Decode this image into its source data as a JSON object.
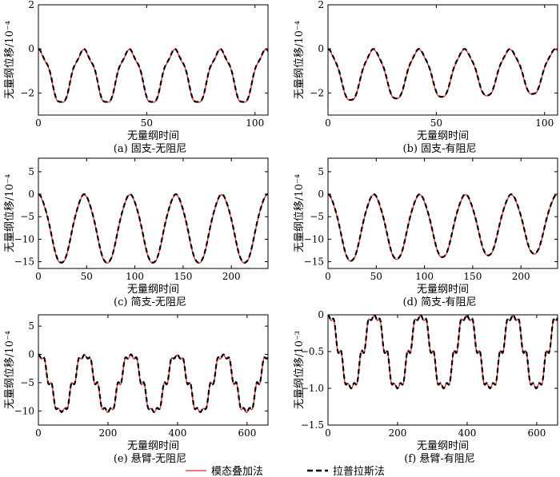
{
  "legend": {
    "modal": "模态叠加法",
    "laplace": "拉普拉斯法"
  },
  "colors": {
    "modal": "#e8262b",
    "laplace": "#000000"
  },
  "chart_data": [
    {
      "type": "line",
      "caption": "(a) 固支-无阻尼",
      "xlabel": "无量纲时间",
      "ylabel": "无量纲位移/10⁻⁴",
      "xlim": [
        0,
        106
      ],
      "ylim": [
        -3,
        2
      ],
      "xticks": [
        0,
        50,
        100
      ],
      "yticks": [
        2,
        0,
        -2
      ],
      "xtick_labels": [
        "0",
        "50",
        "100"
      ],
      "ytick_labels": [
        "2",
        "0",
        "−2"
      ],
      "period": 21.0,
      "amplitude": -2.4,
      "harmonic": 0.08,
      "damping": 0,
      "series": [
        {
          "name": "模态叠加法",
          "x": [
            0,
            5,
            10,
            11,
            16,
            21,
            26,
            31,
            32,
            37,
            42,
            47,
            52,
            53,
            58,
            63,
            68,
            73,
            74,
            79,
            84,
            89,
            94,
            95,
            100,
            106
          ],
          "y": [
            0,
            -1.2,
            -2.3,
            -2.4,
            -1.3,
            0,
            -1.2,
            -2.4,
            -2.5,
            -1.3,
            0,
            -1.2,
            -2.4,
            -2.5,
            -1.3,
            0,
            -1.2,
            -2.4,
            -2.4,
            -1.3,
            0,
            -1.2,
            -2.4,
            -2.4,
            -1.3,
            0
          ]
        },
        {
          "name": "拉普拉斯法",
          "x": [
            0,
            5,
            10,
            11,
            16,
            21,
            26,
            31,
            32,
            37,
            42,
            47,
            52,
            53,
            58,
            63,
            68,
            73,
            74,
            79,
            84,
            89,
            94,
            95,
            100,
            106
          ],
          "y": [
            0,
            -1.2,
            -2.3,
            -2.4,
            -1.3,
            0,
            -1.2,
            -2.4,
            -2.5,
            -1.3,
            0,
            -1.2,
            -2.4,
            -2.5,
            -1.3,
            0,
            -1.2,
            -2.4,
            -2.4,
            -1.3,
            0,
            -1.2,
            -2.4,
            -2.4,
            -1.3,
            0
          ]
        }
      ]
    },
    {
      "type": "line",
      "caption": "(b) 固支-有阻尼",
      "xlabel": "无量纲时间",
      "ylabel": "无量纲位移/10⁻⁴",
      "xlim": [
        0,
        106
      ],
      "ylim": [
        -3,
        2
      ],
      "xticks": [
        0,
        50,
        100
      ],
      "yticks": [
        2,
        0,
        -2
      ],
      "xtick_labels": [
        "0",
        "50",
        "100"
      ],
      "ytick_labels": [
        "2",
        "0",
        "−2"
      ],
      "period": 21.0,
      "amplitude": -2.35,
      "harmonic": 0.05,
      "damping": 0.0015,
      "series": [
        {
          "name": "模态叠加法",
          "x": [
            0,
            11,
            21,
            32,
            42,
            53,
            63,
            74,
            84,
            95,
            106
          ],
          "y": [
            0,
            -2.4,
            0,
            -2.4,
            0,
            -2.35,
            0,
            -2.3,
            0,
            -2.3,
            0
          ]
        },
        {
          "name": "拉普拉斯法",
          "x": [
            0,
            11,
            21,
            32,
            42,
            53,
            63,
            74,
            84,
            95,
            106
          ],
          "y": [
            0,
            -2.4,
            0,
            -2.4,
            0,
            -2.35,
            0,
            -2.3,
            0,
            -2.3,
            0
          ]
        }
      ]
    },
    {
      "type": "line",
      "caption": "(c) 简支-无阻尼",
      "xlabel": "无量纲时间",
      "ylabel": "无量纲位移/10⁻⁴",
      "xlim": [
        0,
        238
      ],
      "ylim": [
        -16.5,
        8
      ],
      "xticks": [
        0,
        50,
        100,
        150,
        200
      ],
      "yticks": [
        5,
        0,
        -5,
        -10,
        -15
      ],
      "xtick_labels": [
        "0",
        "50",
        "100",
        "150",
        "200"
      ],
      "ytick_labels": [
        "5",
        "0",
        "−5",
        "−10",
        "−15"
      ],
      "period": 47.5,
      "amplitude": -15.2,
      "harmonic": 0.02,
      "damping": 0,
      "series": [
        {
          "name": "模态叠加法",
          "x": [
            0,
            24,
            47.5,
            71,
            95,
            119,
            142.5,
            166,
            190,
            214,
            238
          ],
          "y": [
            0,
            -15.2,
            0,
            -15.2,
            0,
            -15.2,
            0,
            -15.2,
            0,
            -15.2,
            0
          ]
        },
        {
          "name": "拉普拉斯法",
          "x": [
            0,
            24,
            47.5,
            71,
            95,
            119,
            142.5,
            166,
            190,
            214,
            238
          ],
          "y": [
            0,
            -15.2,
            0,
            -15.2,
            0,
            -15.2,
            0,
            -15.2,
            0,
            -15.2,
            0
          ]
        }
      ]
    },
    {
      "type": "line",
      "caption": "(d) 简支-有阻尼",
      "xlabel": "无量纲时间",
      "ylabel": "无量纲位移/10⁻⁴",
      "xlim": [
        0,
        238
      ],
      "ylim": [
        -16.5,
        8
      ],
      "xticks": [
        0,
        50,
        100,
        150,
        200
      ],
      "yticks": [
        5,
        0,
        -5,
        -10,
        -15
      ],
      "xtick_labels": [
        "0",
        "50",
        "100",
        "150",
        "200"
      ],
      "ytick_labels": [
        "5",
        "0",
        "−5",
        "−10",
        "−15"
      ],
      "period": 47.5,
      "amplitude": -15.0,
      "harmonic": 0.02,
      "damping": 0.0006,
      "series": [
        {
          "name": "模态叠加法",
          "x": [
            0,
            24,
            47.5,
            71,
            95,
            119,
            142.5,
            166,
            190,
            214,
            238
          ],
          "y": [
            0,
            -15.0,
            0,
            -14.8,
            0,
            -14.6,
            0,
            -14.5,
            0,
            -14.4,
            0
          ]
        },
        {
          "name": "拉普拉斯法",
          "x": [
            0,
            24,
            47.5,
            71,
            95,
            119,
            142.5,
            166,
            190,
            214,
            238
          ],
          "y": [
            0,
            -15.0,
            0,
            -14.8,
            0,
            -14.6,
            0,
            -14.5,
            0,
            -14.4,
            0
          ]
        }
      ]
    },
    {
      "type": "line",
      "caption": "(e) 悬臂-无阻尼",
      "xlabel": "无量纲时间",
      "ylabel": "无量纲位移/10⁻⁴",
      "xlim": [
        0,
        660
      ],
      "ylim": [
        -12.5,
        7
      ],
      "xticks": [
        0,
        200,
        400,
        600
      ],
      "yticks": [
        5,
        0,
        -5,
        -10
      ],
      "xtick_labels": [
        "0",
        "200",
        "400",
        "600"
      ],
      "ytick_labels": [
        "5",
        "0",
        "−5",
        "−10"
      ],
      "period": 133,
      "amplitude": -10.2,
      "harmonic": 0.12,
      "harmonic_order": 6,
      "damping": 0,
      "series": [
        {
          "name": "模态叠加法",
          "x": [
            0,
            66,
            133,
            199,
            266,
            332,
            399,
            465,
            532,
            598,
            660
          ],
          "y": [
            0,
            -10.3,
            0,
            -10.3,
            0,
            -10.5,
            0,
            -10.3,
            0,
            -10.5,
            -0.4
          ]
        },
        {
          "name": "拉普拉斯法",
          "x": [
            0,
            66,
            133,
            199,
            266,
            332,
            399,
            465,
            532,
            598,
            660
          ],
          "y": [
            0,
            -10.3,
            0,
            -10.3,
            0,
            -10.5,
            0,
            -10.3,
            0,
            -10.5,
            -0.4
          ]
        }
      ]
    },
    {
      "type": "line",
      "caption": "(f) 悬臂-有阻尼",
      "xlabel": "无量纲时间",
      "ylabel": "无量纲位移/10⁻³",
      "xlim": [
        0,
        660
      ],
      "ylim": [
        -1.5,
        0
      ],
      "xticks": [
        0,
        200,
        400,
        600
      ],
      "yticks": [
        0,
        -0.5,
        -1.0,
        -1.5
      ],
      "xtick_labels": [
        "0",
        "200",
        "400",
        "600"
      ],
      "ytick_labels": [
        "0",
        "−0.5",
        "−1.0",
        "−1.5"
      ],
      "period": 133,
      "amplitude": -1.0,
      "harmonic": 0.12,
      "harmonic_order": 6,
      "damping": 0,
      "series": [
        {
          "name": "模态叠加法",
          "x": [
            0,
            66,
            133,
            199,
            266,
            332,
            399,
            465,
            532,
            598,
            660
          ],
          "y": [
            0,
            -1.02,
            0,
            -1.03,
            0,
            -1.05,
            0,
            -1.05,
            0,
            -1.03,
            -0.03
          ]
        },
        {
          "name": "拉普拉斯法",
          "x": [
            0,
            66,
            133,
            199,
            266,
            332,
            399,
            465,
            532,
            598,
            660
          ],
          "y": [
            0,
            -1.0,
            0,
            -1.02,
            0,
            -1.03,
            0,
            -1.03,
            0,
            -1.02,
            -0.03
          ]
        }
      ]
    }
  ]
}
